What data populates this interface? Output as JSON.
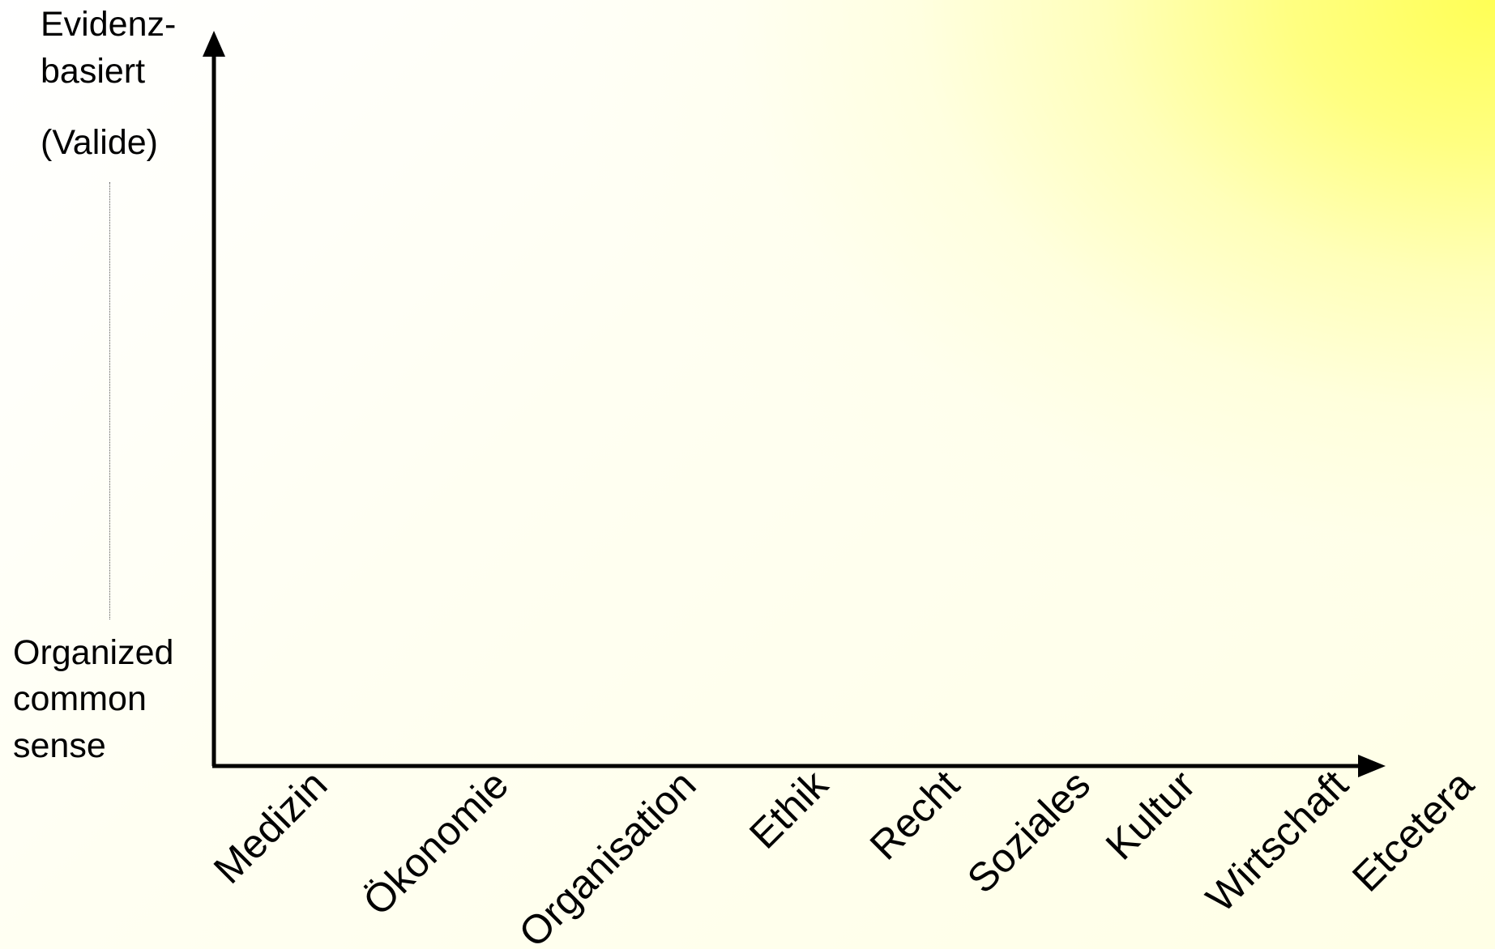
{
  "y_axis": {
    "top_label_line1": "Evidenz-",
    "top_label_line2": "basiert",
    "top_label_line3": "(Valide)",
    "bottom_label_line1": "Organized",
    "bottom_label_line2": "common",
    "bottom_label_line3": "sense"
  },
  "x_axis": {
    "categories": [
      "Medizin",
      "Ökonomie",
      "Organisation",
      "Ethik",
      "Recht",
      "Soziales",
      "Kultur",
      "Wirtschaft",
      "Etcetera"
    ]
  },
  "colors": {
    "highlight": "#ffff66",
    "axis": "#000000",
    "background": "#ffffff"
  }
}
